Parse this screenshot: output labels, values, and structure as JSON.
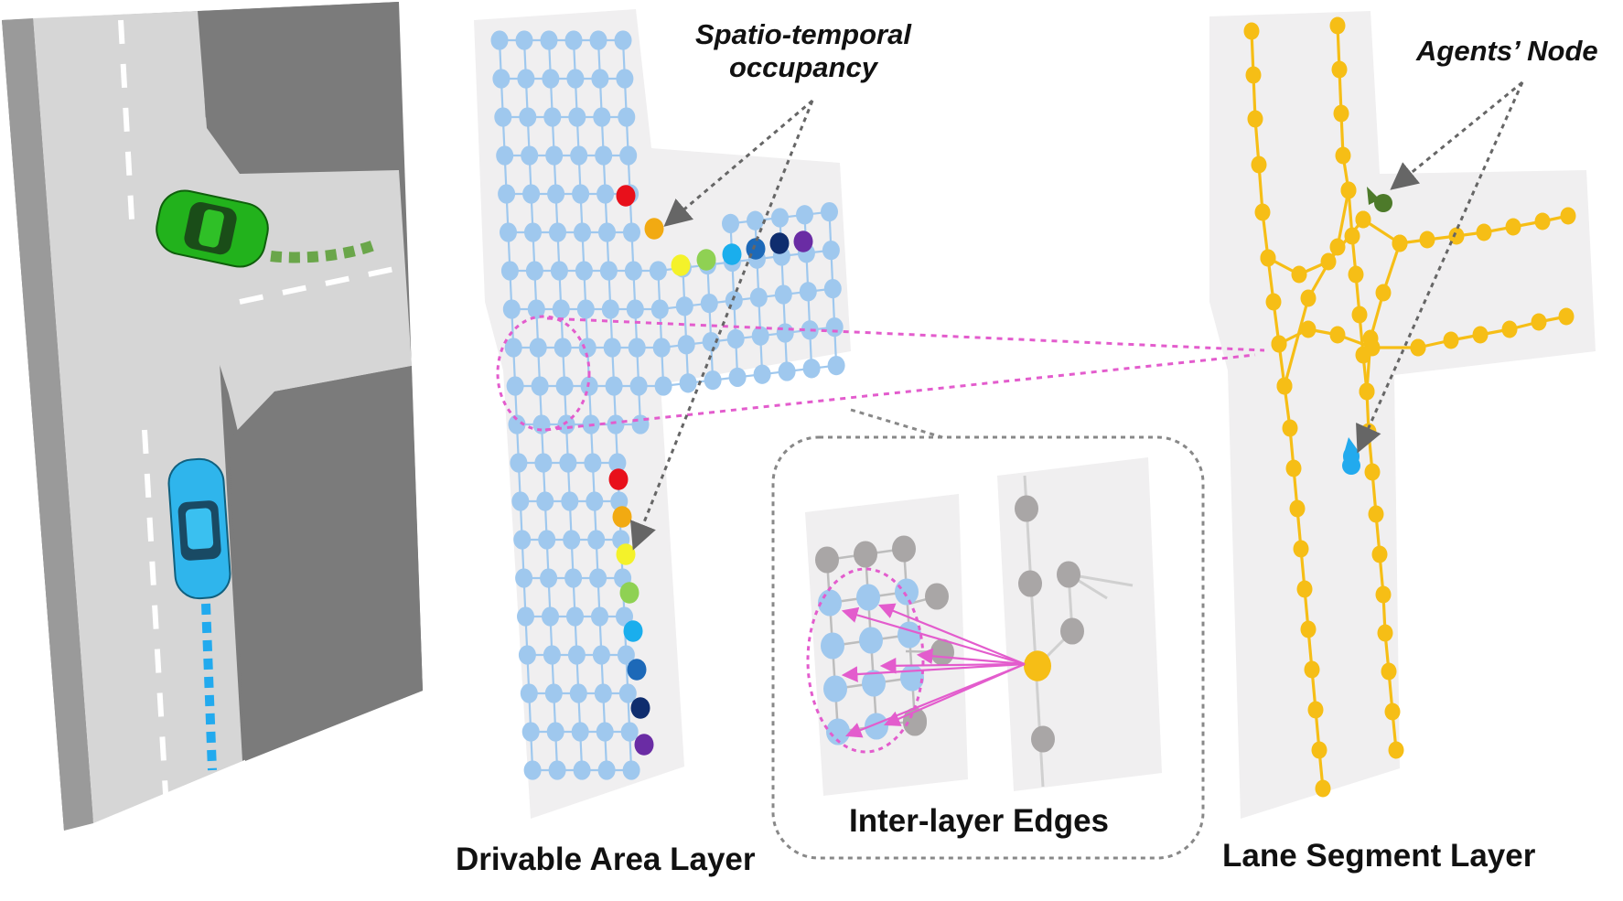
{
  "labels": {
    "spatio_temporal_line1": "Spatio-temporal",
    "spatio_temporal_line2": "occupancy",
    "agents_node": "Agents’ Node",
    "inter_layer_edges": "Inter-layer Edges",
    "drivable_area_layer": "Drivable Area Layer",
    "lane_segment_layer": "Lane Segment Layer"
  },
  "colors": {
    "drivable_node": "#9fc8ee",
    "drivable_edge": "#9fc8ee",
    "lane_node": "#f6be16",
    "lane_edge": "#f6be16",
    "inactive_node": "#a9a6a6",
    "inter_edge": "#e35ccd",
    "highlight_ring": "#e35ccd",
    "road": "#d8d8d8",
    "offroad": "#7b7b7b",
    "green_car": "#22b21c",
    "blue_car": "#2fb5ec",
    "agent_green": "#4d7a2a",
    "agent_blue": "#22aaee"
  },
  "occupancy_sequence_colors": [
    "#e8101b",
    "#f2aa12",
    "#f4f22a",
    "#8fd153",
    "#1aaeed",
    "#1d69b8",
    "#0f2d6e",
    "#6a2ca4"
  ]
}
